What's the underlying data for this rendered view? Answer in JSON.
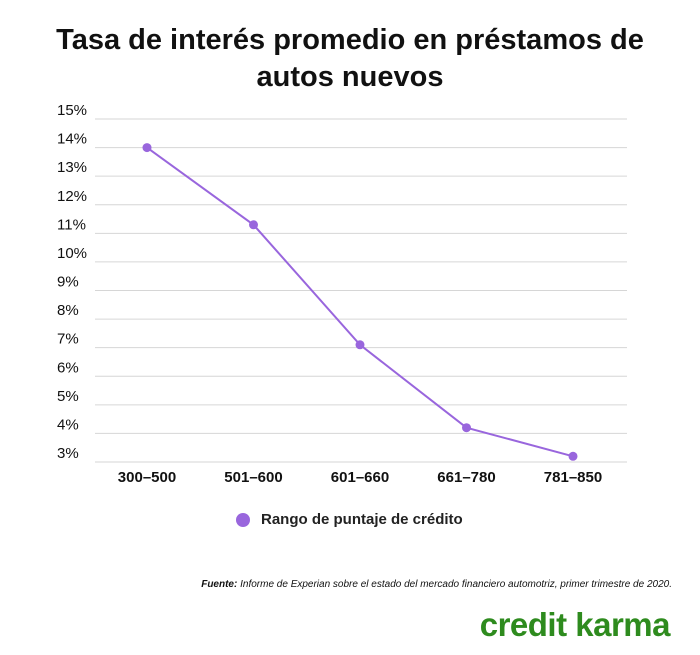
{
  "title": "Tasa de interés promedio en préstamos de autos nuevos",
  "chart_data": {
    "type": "line",
    "title": "Tasa de interés promedio en préstamos de autos nuevos",
    "categories": [
      "300–500",
      "501–600",
      "601–660",
      "661–780",
      "781–850"
    ],
    "series": [
      {
        "name": "Rango de puntaje de crédito",
        "values": [
          14.0,
          11.3,
          7.1,
          4.2,
          3.2
        ]
      }
    ],
    "y_ticks": [
      "3%",
      "4%",
      "5%",
      "6%",
      "7%",
      "8%",
      "9%",
      "10%",
      "11%",
      "12%",
      "13%",
      "14%",
      "15%"
    ],
    "ylim": [
      3,
      15
    ],
    "grid": true,
    "legend": "bottom-center",
    "line_color": "#9966dd"
  },
  "legend": {
    "label": "Rango de puntaje de crédito"
  },
  "source": {
    "prefix": "Fuente:",
    "text": " Informe de Experian sobre el estado del mercado financiero automotriz, primer trimestre de 2020."
  },
  "brand": {
    "name": "credit karma",
    "color": "#2e8b1e"
  }
}
